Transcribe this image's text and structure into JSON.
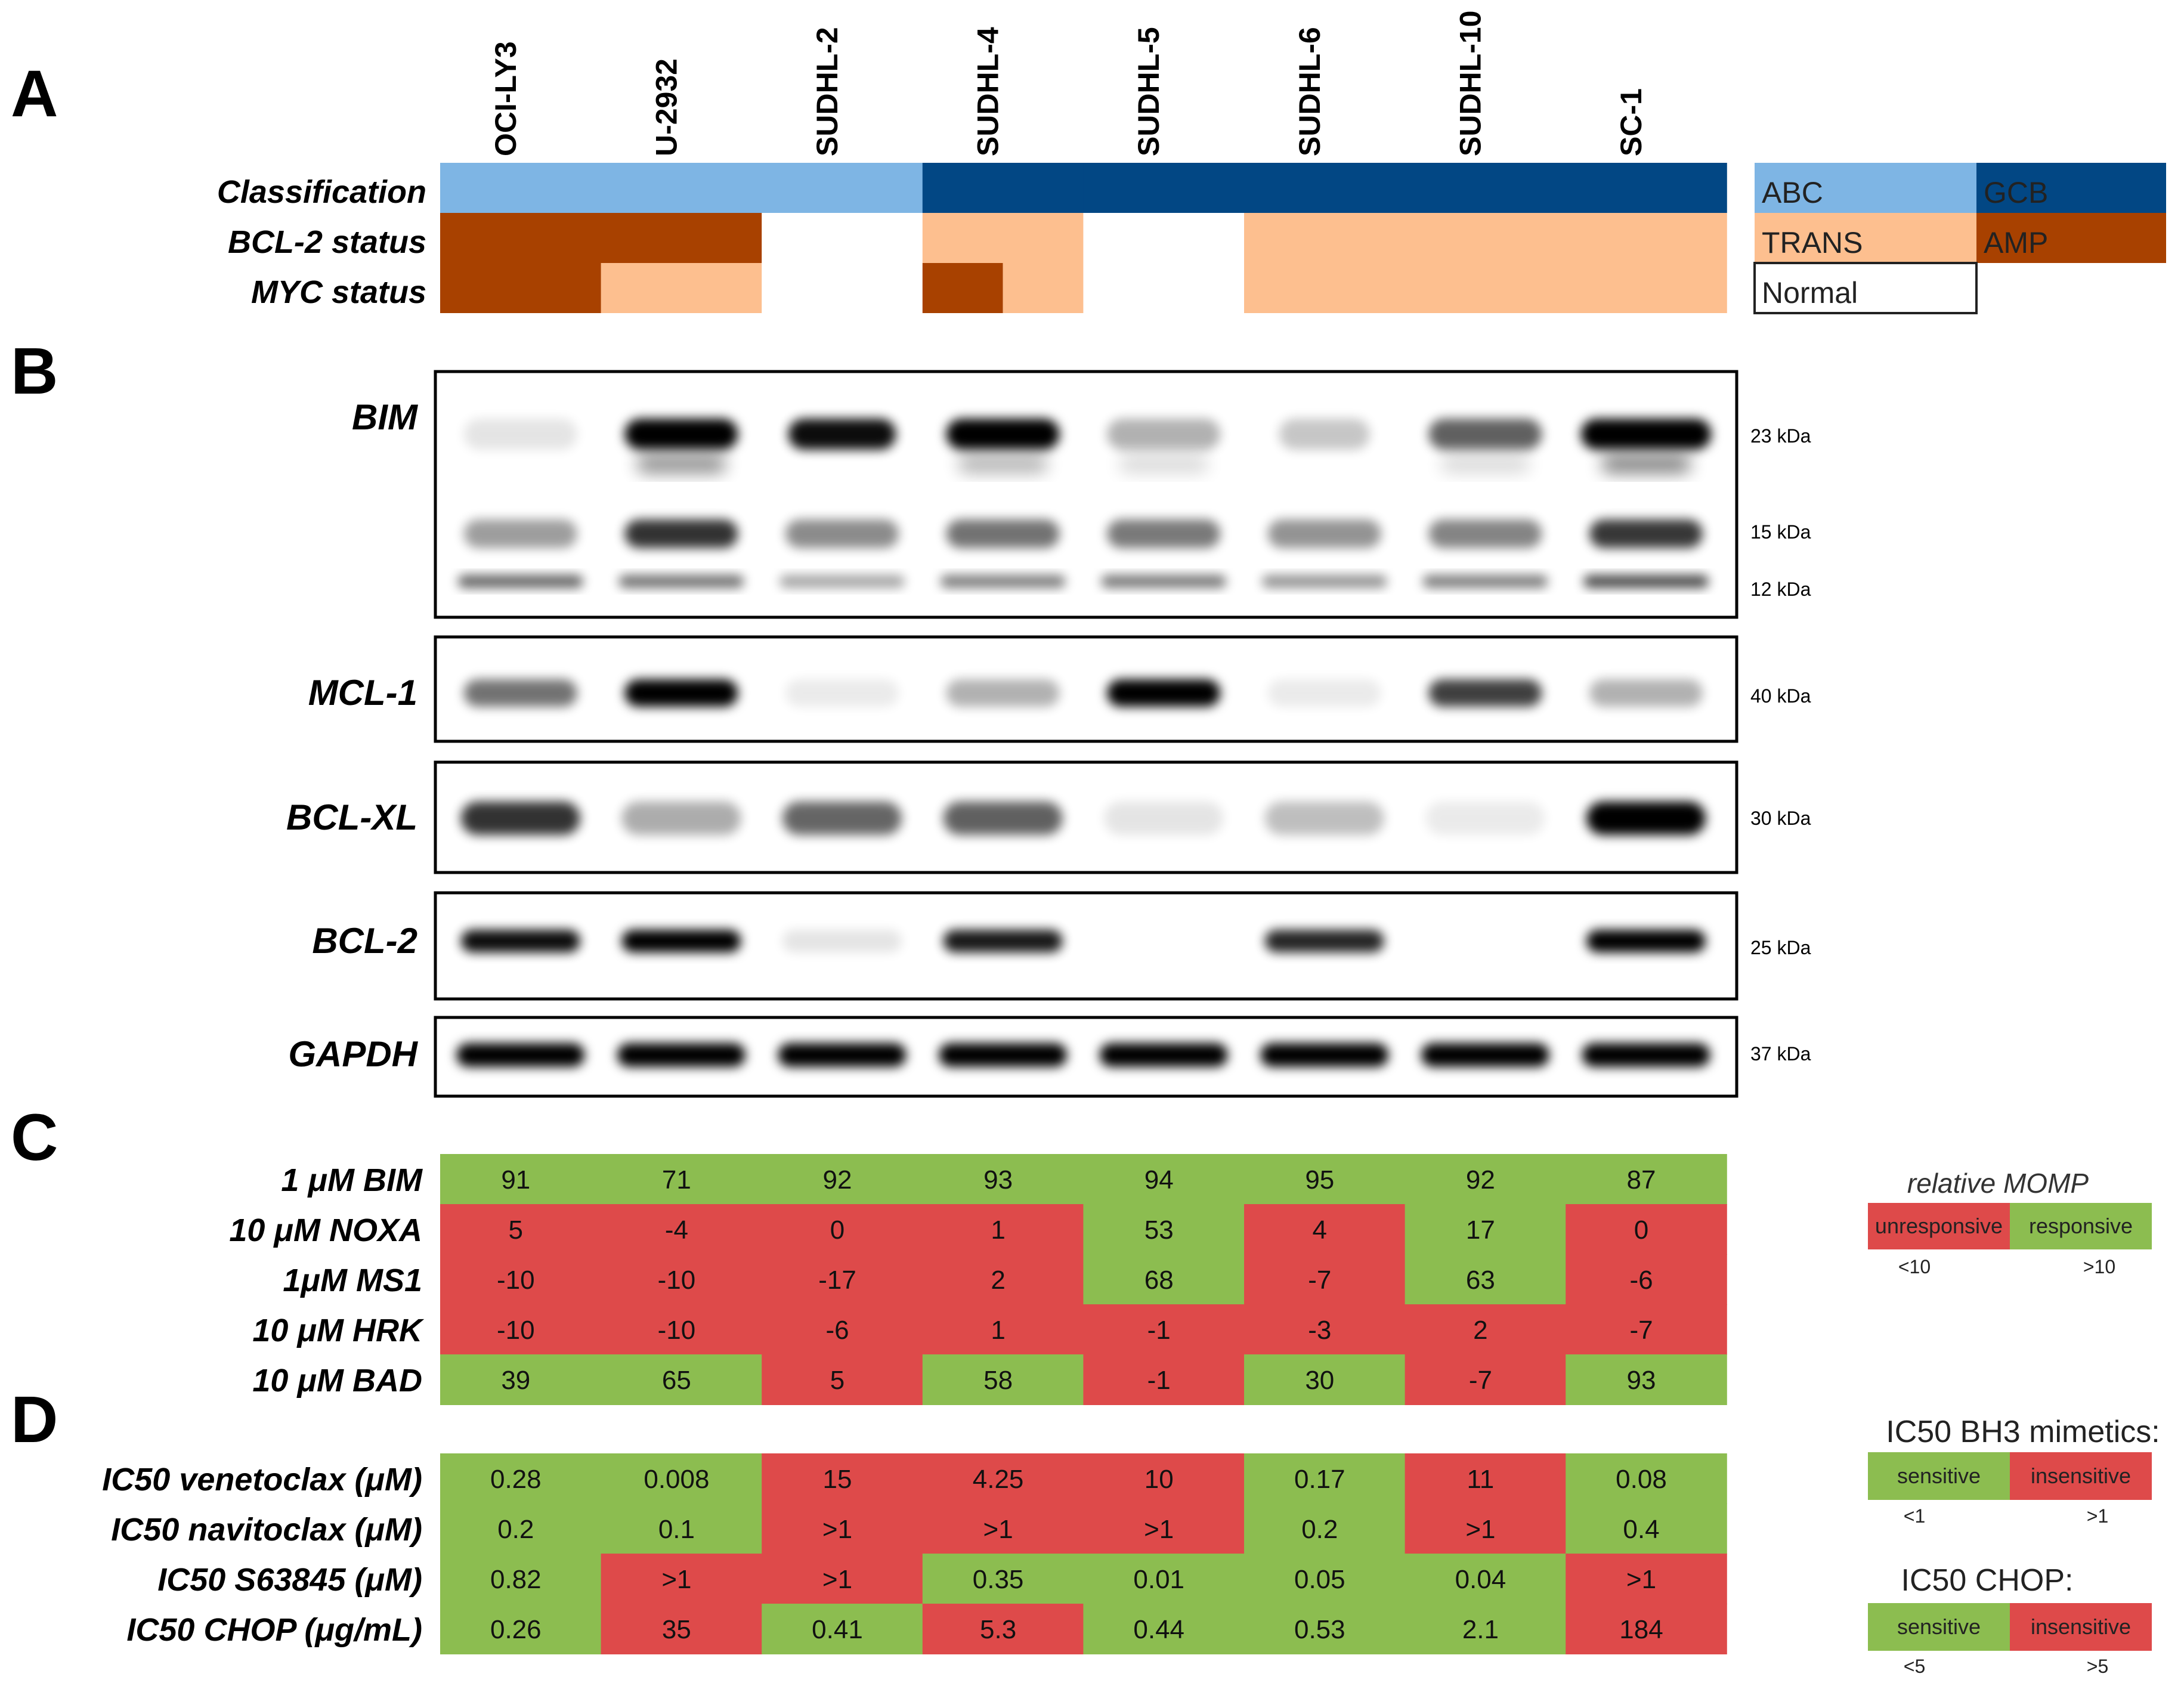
{
  "panels": [
    "A",
    "B",
    "C",
    "D"
  ],
  "cell_lines": [
    "OCI-LY3",
    "U-2932",
    "SUDHL-2",
    "SUDHL-4",
    "SUDHL-5",
    "SUDHL-6",
    "SUDHL-10",
    "SC-1"
  ],
  "colors": {
    "ABC": "#7eb5e4",
    "GCB": "#024784",
    "TRANS": "#fdbf8f",
    "AMP": "#a84100",
    "Normal": "#ffffff",
    "green": "#8cbd50",
    "red": "#de4a4a"
  },
  "panel_a": {
    "row_labels": [
      "Classification",
      "BCL-2 status",
      "MYC status"
    ],
    "classification": [
      "ABC",
      "ABC",
      "ABC",
      "GCB",
      "GCB",
      "GCB",
      "GCB",
      "GCB"
    ],
    "bcl2_status": [
      "AMP",
      "AMP",
      "Normal",
      "TRANS",
      "Normal",
      "TRANS",
      "TRANS",
      "TRANS"
    ],
    "myc_status": [
      "AMP",
      "TRANS",
      "Normal",
      "AMP/TRANS",
      "Normal",
      "TRANS",
      "TRANS",
      "TRANS"
    ],
    "legend": {
      "abc": "ABC",
      "gcb": "GCB",
      "trans": "TRANS",
      "amp": "AMP",
      "normal": "Normal"
    }
  },
  "panel_b": {
    "blots": [
      {
        "protein": "BIM",
        "markers": [
          "23 kDa",
          "15 kDa",
          "12 kDa"
        ]
      },
      {
        "protein": "MCL-1",
        "markers": [
          "40 kDa"
        ]
      },
      {
        "protein": "BCL-XL",
        "markers": [
          "30 kDa"
        ]
      },
      {
        "protein": "BCL-2",
        "markers": [
          "25 kDa"
        ]
      },
      {
        "protein": "GAPDH",
        "markers": [
          "37 kDa"
        ]
      }
    ]
  },
  "panel_c": {
    "rows": [
      {
        "label": "1 μM BIM",
        "values": [
          "91",
          "71",
          "92",
          "93",
          "94",
          "95",
          "92",
          "87"
        ]
      },
      {
        "label": "10 μM NOXA",
        "values": [
          "5",
          "-4",
          "0",
          "1",
          "53",
          "4",
          "17",
          "0"
        ]
      },
      {
        "label": "1μM MS1",
        "values": [
          "-10",
          "-10",
          "-17",
          "2",
          "68",
          "-7",
          "63",
          "-6"
        ]
      },
      {
        "label": "10 μM HRK",
        "values": [
          "-10",
          "-10",
          "-6",
          "1",
          "-1",
          "-3",
          "2",
          "-7"
        ]
      },
      {
        "label": "10 μM BAD",
        "values": [
          "39",
          "65",
          "5",
          "58",
          "-1",
          "30",
          "-7",
          "93"
        ]
      }
    ],
    "legend": {
      "title": "relative MOMP",
      "unresponsive": "unresponsive",
      "responsive": "responsive",
      "unresponsive_threshold": "<10",
      "responsive_threshold": ">10"
    }
  },
  "panel_d": {
    "rows": [
      {
        "label": "IC50 venetoclax (μM)",
        "values": [
          "0.28",
          "0.008",
          "15",
          "4.25",
          "10",
          "0.17",
          "11",
          "0.08"
        ],
        "status": [
          "s",
          "s",
          "i",
          "i",
          "i",
          "s",
          "i",
          "s"
        ]
      },
      {
        "label": "IC50 navitoclax (μM)",
        "values": [
          "0.2",
          "0.1",
          ">1",
          ">1",
          ">1",
          "0.2",
          ">1",
          "0.4"
        ],
        "status": [
          "s",
          "s",
          "i",
          "i",
          "i",
          "s",
          "i",
          "s"
        ]
      },
      {
        "label": "IC50 S63845 (μM)",
        "values": [
          "0.82",
          ">1",
          ">1",
          "0.35",
          "0.01",
          "0.05",
          "0.04",
          ">1"
        ],
        "status": [
          "s",
          "i",
          "i",
          "s",
          "s",
          "s",
          "s",
          "i"
        ]
      },
      {
        "label": "IC50 CHOP (μg/mL)",
        "values": [
          "0.26",
          "35",
          "0.41",
          "5.3",
          "0.44",
          "0.53",
          "2.1",
          "184"
        ],
        "status": [
          "s",
          "i",
          "s",
          "i",
          "s",
          "s",
          "s",
          "i"
        ]
      }
    ],
    "legend_bh3": {
      "title": "IC50 BH3 mimetics:",
      "sensitive": "sensitive",
      "insensitive": "insensitive",
      "sensitive_threshold": "<1",
      "insensitive_threshold": ">1"
    },
    "legend_chop": {
      "title": "IC50 CHOP:",
      "sensitive": "sensitive",
      "insensitive": "insensitive",
      "sensitive_threshold": "<5",
      "insensitive_threshold": ">5"
    }
  }
}
